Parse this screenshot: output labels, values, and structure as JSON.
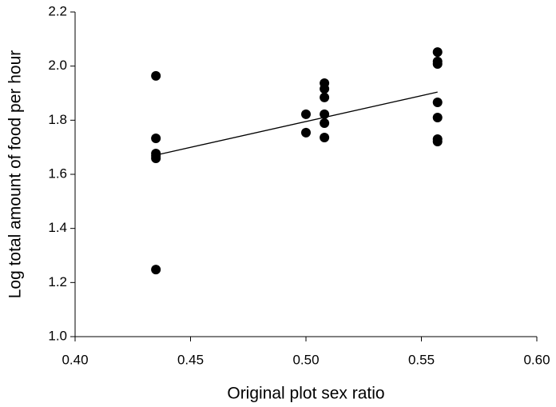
{
  "chart_data": {
    "type": "scatter",
    "x_label": "Original plot sex ratio",
    "y_label": "Log total amount of food per hour",
    "xlim": [
      0.4,
      0.6
    ],
    "ylim": [
      1.0,
      2.2
    ],
    "xticks": [
      {
        "value": 0.4,
        "label": "0.40"
      },
      {
        "value": 0.45,
        "label": "0.45"
      },
      {
        "value": 0.5,
        "label": "0.50"
      },
      {
        "value": 0.55,
        "label": "0.55"
      },
      {
        "value": 0.6,
        "label": "0.60"
      }
    ],
    "yticks": [
      {
        "value": 1.0,
        "label": "1.0"
      },
      {
        "value": 1.2,
        "label": "1.2"
      },
      {
        "value": 1.4,
        "label": "1.4"
      },
      {
        "value": 1.6,
        "label": "1.6"
      },
      {
        "value": 1.8,
        "label": "1.8"
      },
      {
        "value": 2.0,
        "label": "2.0"
      },
      {
        "value": 2.2,
        "label": "2.2"
      }
    ],
    "grid": false,
    "color": "#000000",
    "x": [
      0.435,
      0.435,
      0.435,
      0.435,
      0.435,
      0.435,
      0.5,
      0.5,
      0.508,
      0.508,
      0.508,
      0.508,
      0.508,
      0.508,
      0.557,
      0.557,
      0.557,
      0.557,
      0.557,
      0.557,
      0.557
    ],
    "values": [
      1.964,
      1.733,
      1.677,
      1.668,
      1.659,
      1.248,
      1.822,
      1.754,
      1.937,
      1.916,
      1.884,
      1.822,
      1.789,
      1.736,
      2.052,
      2.017,
      2.008,
      1.866,
      1.81,
      1.73,
      1.721
    ],
    "trendline": {
      "x": [
        0.435,
        0.557
      ],
      "y": [
        1.671,
        1.904
      ]
    }
  }
}
